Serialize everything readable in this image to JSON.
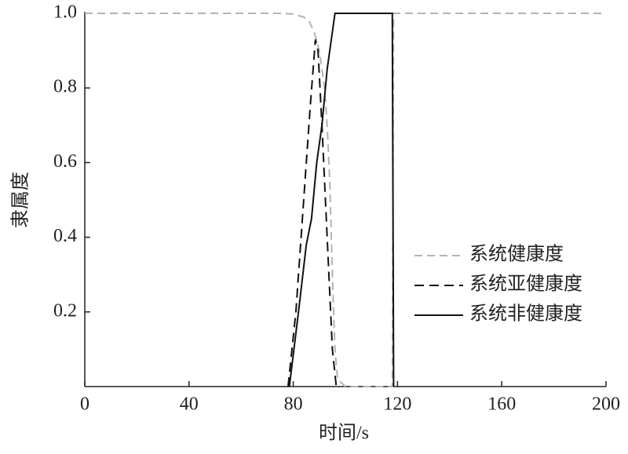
{
  "chart_data": {
    "type": "line",
    "x_label": "时间/s",
    "y_label": "隶属度",
    "xlim": [
      0,
      200
    ],
    "ylim": [
      0,
      1
    ],
    "xticks": [
      0,
      40,
      80,
      120,
      160,
      200
    ],
    "yticks": [
      0.2,
      0.4,
      0.6,
      0.8,
      {
        "value": 1,
        "label": "1.0"
      }
    ],
    "legend": "lower right",
    "series": [
      {
        "name": "系统健康度",
        "color": "#b3b3b3",
        "dash": "10,6",
        "x": [
          0,
          70,
          76,
          80,
          84,
          86,
          88,
          90,
          92,
          93,
          94,
          95,
          96,
          97,
          100,
          118,
          118.5,
          120,
          200
        ],
        "values": [
          1,
          1,
          1,
          0.998,
          0.99,
          0.98,
          0.95,
          0.9,
          0.8,
          0.7,
          0.55,
          0.3,
          0.1,
          0.02,
          0,
          0,
          1,
          1,
          1
        ]
      },
      {
        "name": "系统亚健康度",
        "color": "#111111",
        "dash": "12,7",
        "x": [
          78,
          81,
          84,
          86.5,
          88.5,
          89.5,
          91,
          93,
          95,
          96.5
        ],
        "values": [
          0,
          0.2,
          0.5,
          0.75,
          0.93,
          0.9,
          0.7,
          0.4,
          0.1,
          0
        ]
      },
      {
        "name": "系统非健康度",
        "color": "#111111",
        "dash": "",
        "x": [
          78.5,
          82,
          85,
          87,
          89,
          91,
          93,
          96,
          118,
          118.5
        ],
        "values": [
          0,
          0.2,
          0.38,
          0.45,
          0.6,
          0.7,
          0.85,
          1,
          1,
          0
        ]
      }
    ]
  }
}
